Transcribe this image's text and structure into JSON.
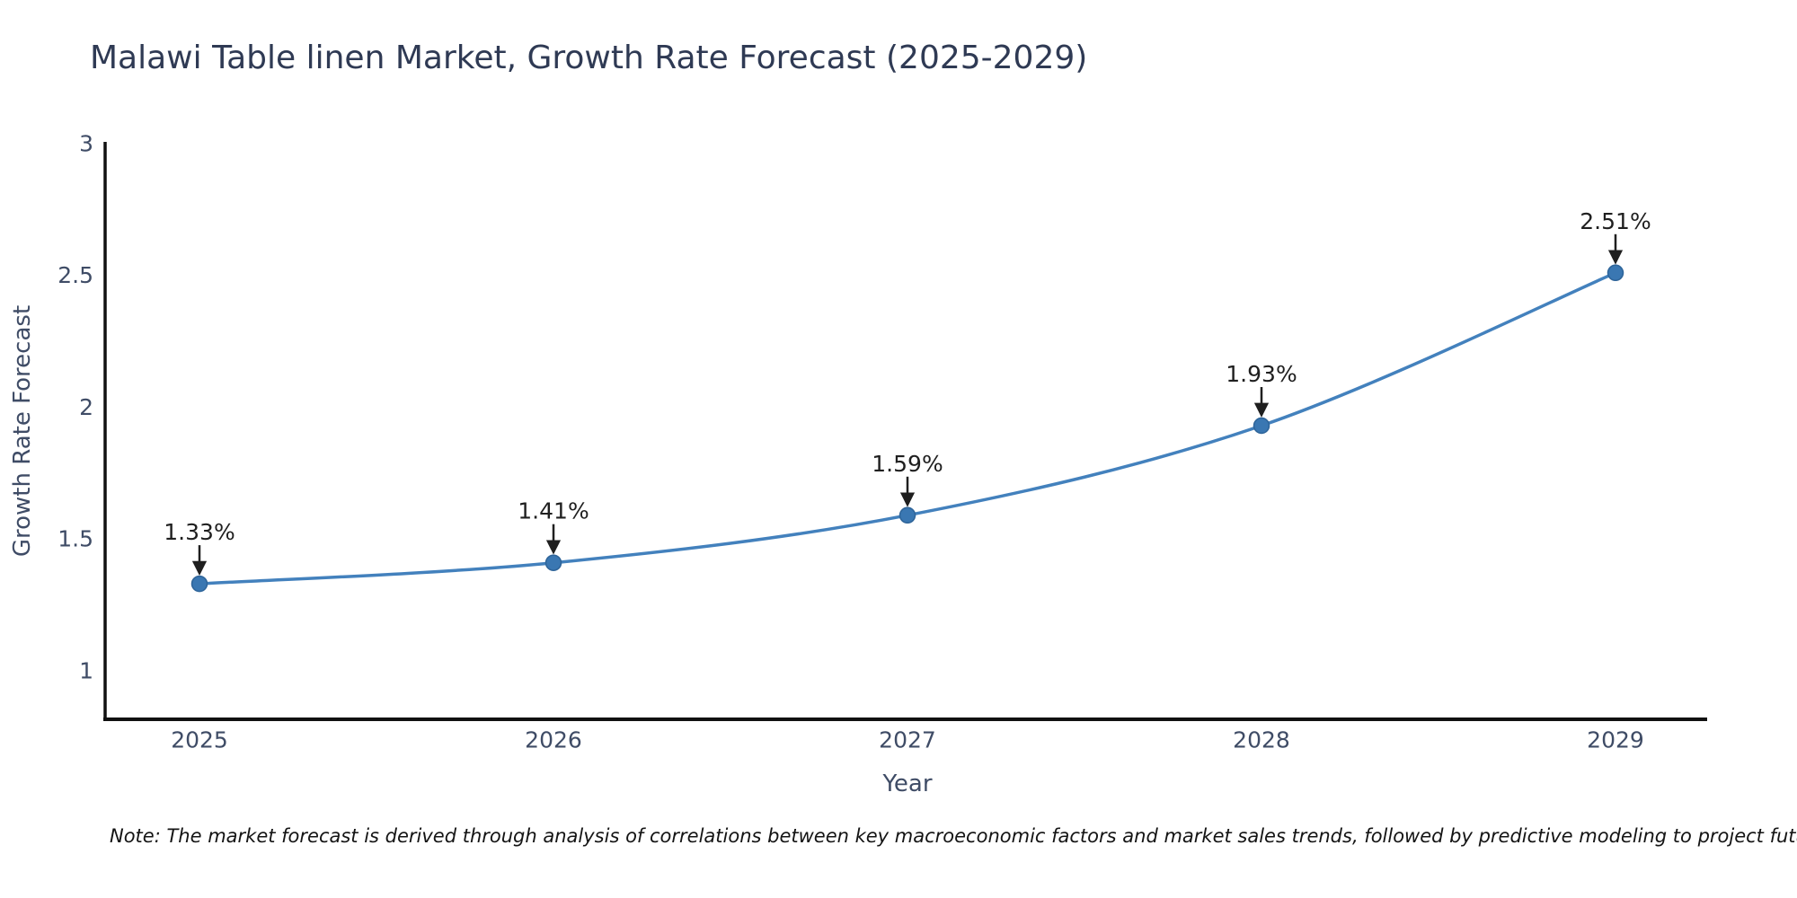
{
  "chart": {
    "title": "Malawi Table linen Market, Growth Rate Forecast (2025-2029)",
    "ylabel": "Growth Rate Forecast",
    "xlabel": "Year",
    "note": "Note: The market forecast is derived through analysis of correlations between key macroeconomic factors and market sales trends, followed by predictive modeling to project future sales"
  },
  "chart_data": {
    "type": "line",
    "title": "Malawi Table linen Market, Growth Rate Forecast (2025-2029)",
    "xlabel": "Year",
    "ylabel": "Growth Rate Forecast",
    "x": [
      2025,
      2026,
      2027,
      2028,
      2029
    ],
    "x_tick_labels": [
      "2025",
      "2026",
      "2027",
      "2028",
      "2029"
    ],
    "values": [
      1.33,
      1.41,
      1.59,
      1.93,
      2.51
    ],
    "point_labels": [
      "1.33%",
      "1.41%",
      "1.59%",
      "1.93%",
      "2.51%"
    ],
    "y_ticks": [
      1,
      1.5,
      2,
      2.5,
      3
    ],
    "y_tick_labels": [
      "1",
      "1.5",
      "2",
      "2.5",
      "3"
    ],
    "ylim": [
      0.816,
      3.0
    ],
    "xlim": [
      2024.7335,
      2029.2589
    ],
    "grid": false,
    "legend": "none",
    "line_shape": "spline",
    "colors": {
      "line": "#4381bd",
      "marker": "#3a77b2",
      "marker_edge": "#2e6499",
      "axis": "#111111",
      "tick_label": "#3f4c66",
      "title": "#2f3a54",
      "annotation": "#1f1f1f",
      "note": "#141414"
    }
  }
}
